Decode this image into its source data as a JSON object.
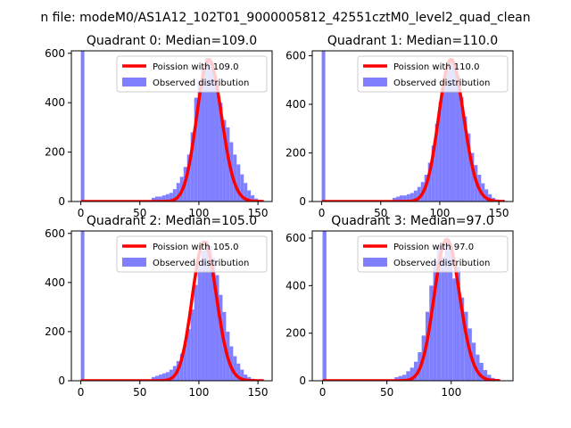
{
  "figure": {
    "suptitle": "n file: modeM0/AS1A12_102T01_9000005812_42551cztM0_level2_quad_clean"
  },
  "chart_data": [
    {
      "type": "bar+line",
      "title": "Quadrant 0: Median=109.0",
      "xlim": [
        -8,
        162
      ],
      "ylim": [
        0,
        610
      ],
      "xticks": [
        "0",
        "50",
        "100",
        "150"
      ],
      "yticks": [
        "0",
        "200",
        "400",
        "600"
      ],
      "grid": false,
      "legend_position": "top-right",
      "legend": [
        "Poission with 109.0",
        "Observed distribution"
      ],
      "series": [
        {
          "name": "Poission with 109.0",
          "kind": "line",
          "mean": 109.0,
          "x_range": [
            0,
            155
          ]
        },
        {
          "name": "Observed distribution",
          "kind": "histogram",
          "bins": [
            [
              0,
              3,
              610
            ],
            [
              60,
              63,
              15
            ],
            [
              63,
              66,
              20
            ],
            [
              66,
              69,
              20
            ],
            [
              69,
              72,
              25
            ],
            [
              72,
              75,
              30
            ],
            [
              75,
              78,
              35
            ],
            [
              78,
              81,
              50
            ],
            [
              81,
              84,
              75
            ],
            [
              84,
              87,
              100
            ],
            [
              87,
              90,
              140
            ],
            [
              90,
              93,
              190
            ],
            [
              93,
              96,
              280
            ],
            [
              96,
              99,
              420
            ],
            [
              99,
              102,
              490
            ],
            [
              102,
              105,
              540
            ],
            [
              105,
              108,
              580
            ],
            [
              108,
              111,
              575
            ],
            [
              111,
              114,
              530
            ],
            [
              114,
              117,
              470
            ],
            [
              117,
              120,
              400
            ],
            [
              120,
              123,
              330
            ],
            [
              123,
              126,
              300
            ],
            [
              126,
              129,
              240
            ],
            [
              129,
              132,
              190
            ],
            [
              132,
              135,
              150
            ],
            [
              135,
              138,
              110
            ],
            [
              138,
              141,
              75
            ],
            [
              141,
              144,
              45
            ],
            [
              144,
              147,
              25
            ],
            [
              147,
              150,
              12
            ]
          ]
        }
      ]
    },
    {
      "type": "bar+line",
      "title": "Quadrant 1: Median=110.0",
      "xlim": [
        -8,
        162
      ],
      "ylim": [
        0,
        620
      ],
      "xticks": [
        "0",
        "50",
        "100",
        "150"
      ],
      "yticks": [
        "0",
        "200",
        "400",
        "600"
      ],
      "grid": false,
      "legend_position": "top-right",
      "legend": [
        "Poission with 110.0",
        "Observed distribution"
      ],
      "series": [
        {
          "name": "Poission with 110.0",
          "kind": "line",
          "mean": 110.0,
          "x_range": [
            0,
            155
          ]
        },
        {
          "name": "Observed distribution",
          "kind": "histogram",
          "bins": [
            [
              0,
              3,
              620
            ],
            [
              60,
              63,
              15
            ],
            [
              63,
              66,
              20
            ],
            [
              66,
              69,
              25
            ],
            [
              69,
              72,
              25
            ],
            [
              72,
              75,
              30
            ],
            [
              75,
              78,
              35
            ],
            [
              78,
              81,
              45
            ],
            [
              81,
              84,
              60
            ],
            [
              84,
              87,
              80
            ],
            [
              87,
              90,
              110
            ],
            [
              90,
              93,
              160
            ],
            [
              93,
              96,
              230
            ],
            [
              96,
              99,
              320
            ],
            [
              99,
              102,
              410
            ],
            [
              102,
              105,
              480
            ],
            [
              105,
              108,
              540
            ],
            [
              108,
              111,
              590
            ],
            [
              111,
              114,
              560
            ],
            [
              114,
              117,
              520
            ],
            [
              117,
              120,
              430
            ],
            [
              120,
              123,
              350
            ],
            [
              123,
              126,
              280
            ],
            [
              126,
              129,
              200
            ],
            [
              129,
              132,
              150
            ],
            [
              132,
              135,
              110
            ],
            [
              135,
              138,
              75
            ],
            [
              138,
              141,
              50
            ],
            [
              141,
              144,
              30
            ],
            [
              144,
              147,
              15
            ],
            [
              147,
              150,
              8
            ]
          ]
        }
      ]
    },
    {
      "type": "bar+line",
      "title": "Quadrant 2: Median=105.0",
      "xlim": [
        -8,
        162
      ],
      "ylim": [
        0,
        610
      ],
      "xticks": [
        "0",
        "50",
        "100",
        "150"
      ],
      "yticks": [
        "0",
        "200",
        "400",
        "600"
      ],
      "grid": false,
      "legend_position": "top-right",
      "legend": [
        "Poission with 105.0",
        "Observed distribution"
      ],
      "series": [
        {
          "name": "Poission with 105.0",
          "kind": "line",
          "mean": 105.0,
          "x_range": [
            0,
            155
          ]
        },
        {
          "name": "Observed distribution",
          "kind": "histogram",
          "bins": [
            [
              0,
              3,
              610
            ],
            [
              60,
              63,
              15
            ],
            [
              63,
              66,
              20
            ],
            [
              66,
              69,
              25
            ],
            [
              69,
              72,
              30
            ],
            [
              72,
              75,
              35
            ],
            [
              75,
              78,
              45
            ],
            [
              78,
              81,
              60
            ],
            [
              81,
              84,
              80
            ],
            [
              84,
              87,
              110
            ],
            [
              87,
              90,
              150
            ],
            [
              90,
              93,
              210
            ],
            [
              93,
              96,
              290
            ],
            [
              96,
              99,
              390
            ],
            [
              99,
              102,
              470
            ],
            [
              102,
              105,
              530
            ],
            [
              105,
              108,
              570
            ],
            [
              108,
              111,
              550
            ],
            [
              111,
              114,
              500
            ],
            [
              114,
              117,
              430
            ],
            [
              117,
              120,
              350
            ],
            [
              120,
              123,
              280
            ],
            [
              123,
              126,
              200
            ],
            [
              126,
              129,
              140
            ],
            [
              129,
              132,
              100
            ],
            [
              132,
              135,
              70
            ],
            [
              135,
              138,
              45
            ],
            [
              138,
              141,
              25
            ],
            [
              141,
              144,
              15
            ],
            [
              144,
              147,
              8
            ]
          ]
        }
      ]
    },
    {
      "type": "bar+line",
      "title": "Quadrant 3: Median=97.0",
      "xlim": [
        -8,
        148
      ],
      "ylim": [
        0,
        630
      ],
      "xticks": [
        "0",
        "50",
        "100"
      ],
      "yticks": [
        "0",
        "200",
        "400",
        "600"
      ],
      "grid": false,
      "legend_position": "top-right",
      "legend": [
        "Poission with 97.0",
        "Observed distribution"
      ],
      "series": [
        {
          "name": "Poission with 97.0",
          "kind": "line",
          "mean": 97.0,
          "x_range": [
            0,
            138
          ]
        },
        {
          "name": "Observed distribution",
          "kind": "histogram",
          "bins": [
            [
              0,
              3,
              630
            ],
            [
              56,
              59,
              15
            ],
            [
              59,
              62,
              20
            ],
            [
              62,
              65,
              25
            ],
            [
              65,
              68,
              40
            ],
            [
              68,
              71,
              55
            ],
            [
              71,
              74,
              80
            ],
            [
              74,
              77,
              120
            ],
            [
              77,
              80,
              190
            ],
            [
              80,
              83,
              290
            ],
            [
              83,
              86,
              400
            ],
            [
              86,
              89,
              500
            ],
            [
              89,
              92,
              570
            ],
            [
              92,
              95,
              520
            ],
            [
              95,
              98,
              600
            ],
            [
              98,
              101,
              570
            ],
            [
              101,
              104,
              430
            ],
            [
              104,
              107,
              480
            ],
            [
              107,
              110,
              350
            ],
            [
              110,
              113,
              290
            ],
            [
              113,
              116,
              220
            ],
            [
              116,
              119,
              160
            ],
            [
              119,
              122,
              110
            ],
            [
              122,
              125,
              75
            ],
            [
              125,
              128,
              45
            ],
            [
              128,
              131,
              25
            ],
            [
              131,
              134,
              12
            ]
          ]
        }
      ]
    }
  ],
  "colors": {
    "histogram": "#8080ff",
    "poisson_line": "#ff0000",
    "axes": "#000000",
    "background": "#ffffff"
  }
}
